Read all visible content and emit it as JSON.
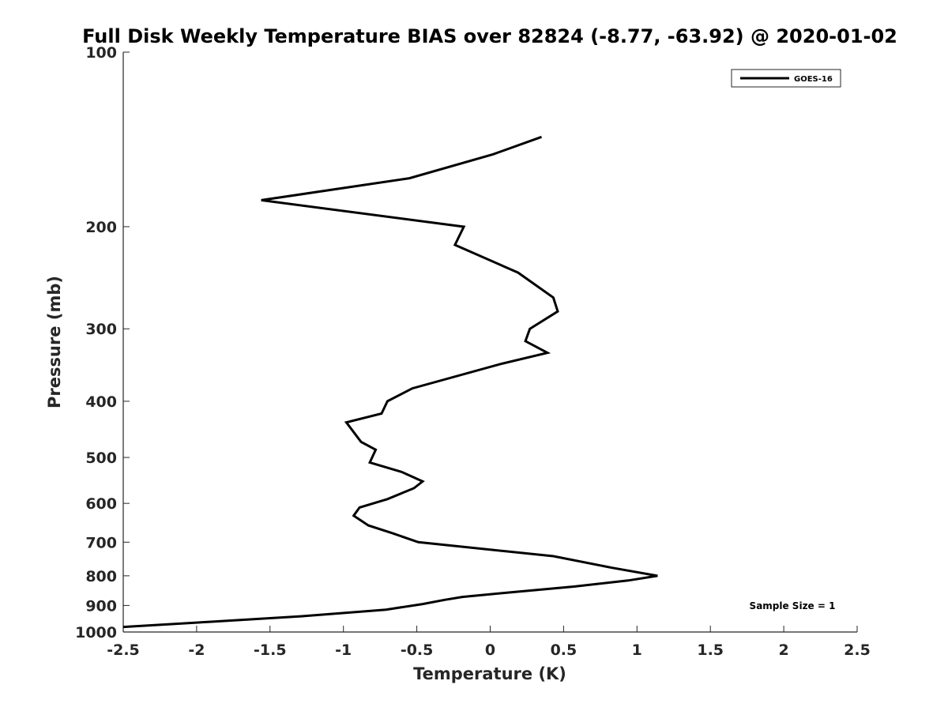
{
  "chart_data": {
    "type": "line",
    "title": "Full Disk Weekly Temperature BIAS over 82824 (-8.77, -63.92) @ 2020-01-02",
    "xlabel": "Temperature (K)",
    "ylabel": "Pressure (mb)",
    "xlim": [
      -2.5,
      2.5
    ],
    "ylim": [
      100,
      1000
    ],
    "yscale": "log",
    "y_reversed": true,
    "xticks": [
      -2.5,
      -2,
      -1.5,
      -1,
      -0.5,
      0,
      0.5,
      1,
      1.5,
      2,
      2.5
    ],
    "xtick_labels": [
      "-2.5",
      "-2",
      "-1.5",
      "-1",
      "-0.5",
      "0",
      "0.5",
      "1",
      "1.5",
      "2",
      "2.5"
    ],
    "yticks": [
      100,
      200,
      300,
      400,
      500,
      600,
      700,
      800,
      900,
      1000
    ],
    "ytick_labels": [
      "100",
      "200",
      "300",
      "400",
      "500",
      "600",
      "700",
      "800",
      "900",
      "1000"
    ],
    "grid": false,
    "legend_position": "top-right",
    "series": [
      {
        "name": "GOES-16",
        "color": "#000000",
        "x": [
          0.35,
          0.02,
          -0.55,
          -1.56,
          -0.18,
          -0.24,
          0.19,
          0.43,
          0.46,
          0.27,
          0.24,
          0.39,
          0.07,
          -0.53,
          -0.7,
          -0.74,
          -0.98,
          -0.88,
          -0.78,
          -0.82,
          -0.6,
          -0.46,
          -0.52,
          -0.7,
          -0.89,
          -0.93,
          -0.83,
          -0.67,
          -0.49,
          0.43,
          0.83,
          1.14,
          0.94,
          0.57,
          0.12,
          -0.19,
          -0.31,
          -0.46,
          -0.71,
          -1.3,
          -1.9,
          -2.5
        ],
        "y": [
          140,
          150,
          165,
          180,
          200,
          215,
          240,
          265,
          280,
          300,
          315,
          330,
          345,
          380,
          400,
          420,
          435,
          470,
          485,
          510,
          530,
          550,
          565,
          590,
          610,
          630,
          655,
          675,
          700,
          740,
          775,
          800,
          815,
          835,
          855,
          870,
          880,
          895,
          915,
          940,
          960,
          980
        ]
      }
    ],
    "annotations": [
      "Sample Size = 1"
    ]
  }
}
